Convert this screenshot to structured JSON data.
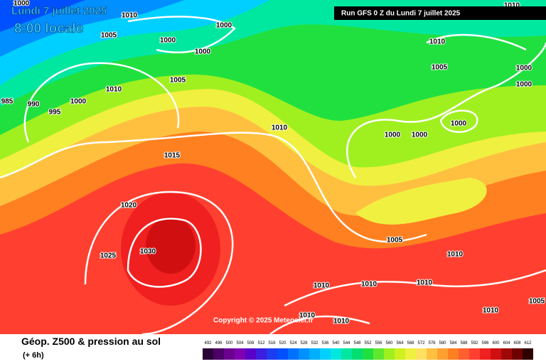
{
  "header": {
    "date": "Lundi 7 juillet 2025",
    "time": "8:00 locale",
    "run": "Run GFS 0 Z du Lundi 7 juillet 2025"
  },
  "copyright": "Copyright © 2025 Meteociel.fr",
  "footer": {
    "title": "Géop. Z500 & pression au sol",
    "lead": "(+ 6h)"
  },
  "isobars": [
    1000,
    1010,
    1005,
    1000,
    1000,
    1000,
    1005,
    1010,
    1000,
    985,
    990,
    995,
    1010,
    1015,
    1020,
    1025,
    1030,
    1010,
    1005,
    1000,
    1000,
    1000,
    1000,
    1000,
    1005,
    1010,
    1010,
    1010,
    1010,
    1010,
    1005,
    1010,
    1010,
    1010
  ],
  "legend": {
    "values": [
      492,
      496,
      500,
      504,
      508,
      512,
      516,
      520,
      524,
      528,
      532,
      536,
      540,
      544,
      548,
      552,
      556,
      560,
      564,
      568,
      572,
      576,
      580,
      584,
      588,
      592,
      596,
      600,
      604,
      608,
      612
    ],
    "colors": [
      "#2a0036",
      "#4b0066",
      "#6b008f",
      "#8000b0",
      "#5a00c8",
      "#3c1ee0",
      "#1e3cf0",
      "#0050ff",
      "#0070ff",
      "#0090ff",
      "#00b0ff",
      "#00d0ff",
      "#00e8e0",
      "#00e8a0",
      "#00e070",
      "#20e040",
      "#60e830",
      "#a0f020",
      "#d0f020",
      "#f0f040",
      "#ffe060",
      "#ffc040",
      "#ffa030",
      "#ff8020",
      "#ff6030",
      "#ff4030",
      "#f02020",
      "#d01010",
      "#a00808",
      "#700000",
      "#300000"
    ]
  }
}
